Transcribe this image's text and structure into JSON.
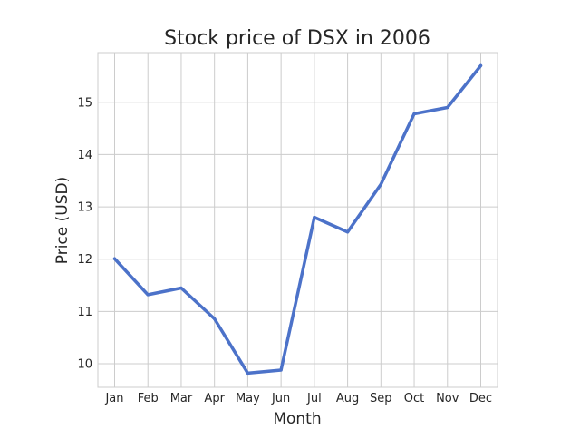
{
  "chart_data": {
    "type": "line",
    "title": "Stock price of DSX in 2006",
    "xlabel": "Month",
    "ylabel": "Price (USD)",
    "categories": [
      "Jan",
      "Feb",
      "Mar",
      "Apr",
      "May",
      "Jun",
      "Jul",
      "Aug",
      "Sep",
      "Oct",
      "Nov",
      "Dec"
    ],
    "series": [
      {
        "values": [
          12.01,
          11.32,
          11.45,
          10.86,
          9.82,
          9.88,
          12.8,
          12.52,
          13.43,
          14.78,
          14.9,
          15.7
        ],
        "color": "#4c72c9"
      }
    ],
    "yticks": [
      10,
      11,
      12,
      13,
      14,
      15
    ],
    "ylim": [
      9.55,
      15.95
    ],
    "grid": true,
    "legend": "none"
  }
}
